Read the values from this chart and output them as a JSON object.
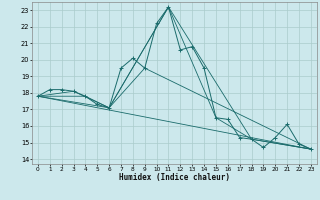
{
  "xlabel": "Humidex (Indice chaleur)",
  "xlim": [
    -0.5,
    23.5
  ],
  "ylim": [
    13.7,
    23.5
  ],
  "yticks": [
    14,
    15,
    16,
    17,
    18,
    19,
    20,
    21,
    22,
    23
  ],
  "xticks": [
    0,
    1,
    2,
    3,
    4,
    5,
    6,
    7,
    8,
    9,
    10,
    11,
    12,
    13,
    14,
    15,
    16,
    17,
    18,
    19,
    20,
    21,
    22,
    23
  ],
  "bg_color": "#cce8ec",
  "grid_color": "#aacccc",
  "line_color": "#1a6b6b",
  "main_line": {
    "x": [
      0,
      1,
      2,
      3,
      4,
      5,
      6,
      7,
      8,
      9,
      10,
      11,
      12,
      13,
      14,
      15,
      16,
      17,
      18,
      19,
      20,
      21,
      22,
      23
    ],
    "y": [
      17.8,
      18.2,
      18.2,
      18.1,
      17.8,
      17.3,
      17.1,
      19.5,
      20.1,
      19.5,
      22.2,
      23.2,
      20.6,
      20.8,
      19.5,
      16.5,
      16.4,
      15.3,
      15.2,
      14.7,
      15.3,
      16.1,
      14.9,
      14.6
    ]
  },
  "extra_lines": [
    {
      "x": [
        0,
        3,
        6,
        9,
        23
      ],
      "y": [
        17.8,
        18.1,
        17.1,
        19.5,
        14.6
      ]
    },
    {
      "x": [
        0,
        4,
        6,
        11,
        15,
        18,
        23
      ],
      "y": [
        17.8,
        17.8,
        17.1,
        23.2,
        16.5,
        15.2,
        14.6
      ]
    },
    {
      "x": [
        0,
        6,
        11,
        18,
        23
      ],
      "y": [
        17.8,
        17.1,
        23.2,
        15.2,
        14.6
      ]
    },
    {
      "x": [
        0,
        23
      ],
      "y": [
        17.8,
        14.6
      ]
    }
  ]
}
